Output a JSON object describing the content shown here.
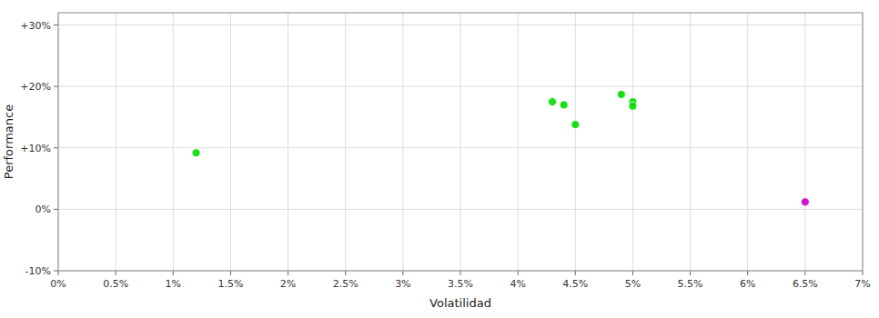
{
  "chart_data": {
    "type": "scatter",
    "xlabel": "Volatilidad",
    "ylabel": "Performance",
    "xlim": [
      0,
      0.07
    ],
    "ylim": [
      -0.1,
      0.32
    ],
    "xticks": [
      {
        "value": 0.0,
        "label": "0%"
      },
      {
        "value": 0.005,
        "label": "0.5%"
      },
      {
        "value": 0.01,
        "label": "1%"
      },
      {
        "value": 0.015,
        "label": "1.5%"
      },
      {
        "value": 0.02,
        "label": "2%"
      },
      {
        "value": 0.025,
        "label": "2.5%"
      },
      {
        "value": 0.03,
        "label": "3%"
      },
      {
        "value": 0.035,
        "label": "3.5%"
      },
      {
        "value": 0.04,
        "label": "4%"
      },
      {
        "value": 0.045,
        "label": "4.5%"
      },
      {
        "value": 0.05,
        "label": "5%"
      },
      {
        "value": 0.055,
        "label": "5.5%"
      },
      {
        "value": 0.06,
        "label": "6%"
      },
      {
        "value": 0.065,
        "label": "6.5%"
      },
      {
        "value": 0.07,
        "label": "7%"
      }
    ],
    "yticks": [
      {
        "value": -0.1,
        "label": "-10%"
      },
      {
        "value": 0.0,
        "label": "0%"
      },
      {
        "value": 0.1,
        "label": "+10%"
      },
      {
        "value": 0.2,
        "label": "+20%"
      },
      {
        "value": 0.3,
        "label": "+30%"
      }
    ],
    "grid": true,
    "series": [
      {
        "color": "#00dd00",
        "x": [
          0.012,
          0.043,
          0.044,
          0.045,
          0.049,
          0.05,
          0.05
        ],
        "values": [
          0.092,
          0.175,
          0.17,
          0.138,
          0.187,
          0.175,
          0.168
        ]
      },
      {
        "color": "#cc00cc",
        "x": [
          0.065
        ],
        "values": [
          0.012
        ]
      }
    ]
  }
}
